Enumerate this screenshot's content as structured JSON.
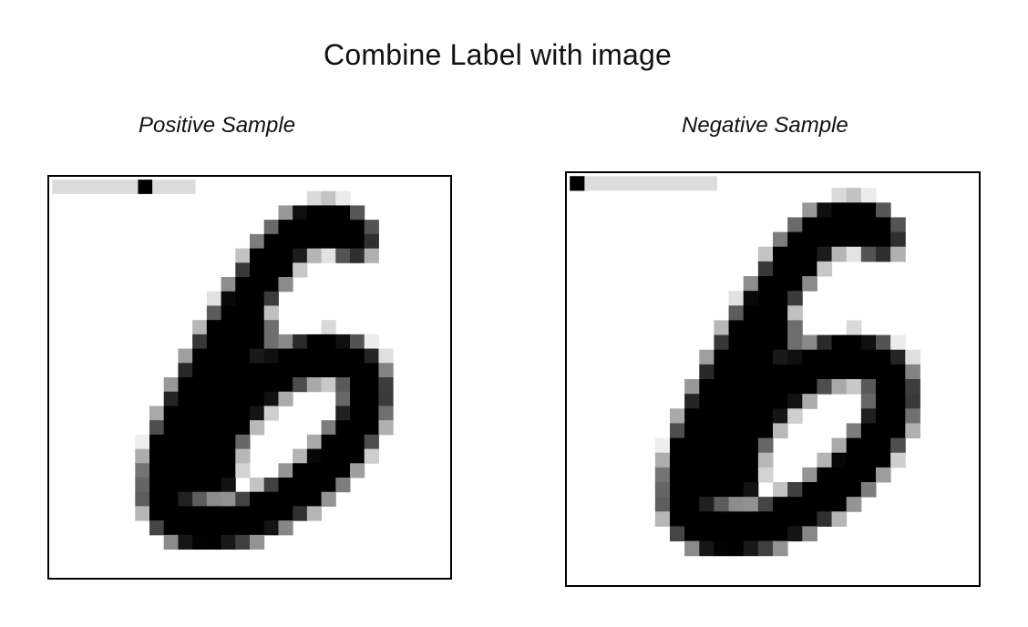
{
  "title": "Combine Label with image",
  "samples": [
    {
      "label": "Positive Sample",
      "label_value": 6
    },
    {
      "label": "Negative Sample",
      "label_value": 0
    }
  ],
  "colors": {
    "border": "#000000",
    "label_strip": "#dcdcdc",
    "label_mark": "#000000"
  }
}
